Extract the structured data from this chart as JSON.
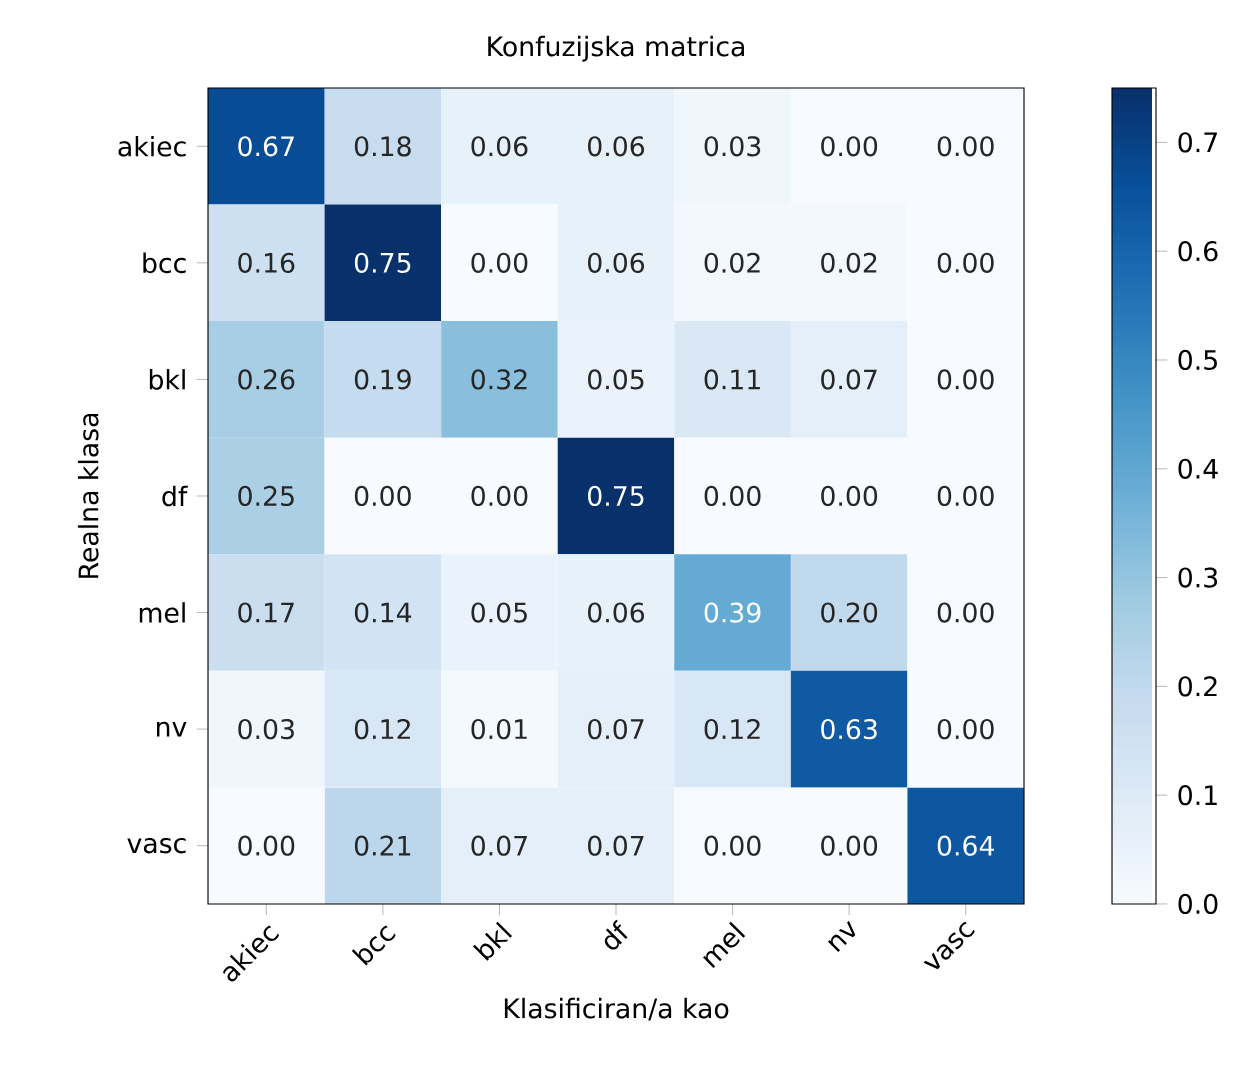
{
  "chart_data": {
    "type": "heatmap",
    "title": "Konfuzijska matrica",
    "xlabel": "Klasificiran/a kao",
    "ylabel": "Realna klasa",
    "categories": [
      "akiec",
      "bcc",
      "bkl",
      "df",
      "mel",
      "nv",
      "vasc"
    ],
    "y_categories": [
      "akiec",
      "bcc",
      "bkl",
      "df",
      "mel",
      "nv",
      "vasc"
    ],
    "cells": [
      [
        0.67,
        0.18,
        0.06,
        0.06,
        0.03,
        0.0,
        0.0
      ],
      [
        0.16,
        0.75,
        0.0,
        0.06,
        0.02,
        0.02,
        0.0
      ],
      [
        0.26,
        0.19,
        0.32,
        0.05,
        0.11,
        0.07,
        0.0
      ],
      [
        0.25,
        0.0,
        0.0,
        0.75,
        0.0,
        0.0,
        0.0
      ],
      [
        0.17,
        0.14,
        0.05,
        0.06,
        0.39,
        0.2,
        0.0
      ],
      [
        0.03,
        0.12,
        0.01,
        0.07,
        0.12,
        0.63,
        0.0
      ],
      [
        0.0,
        0.21,
        0.07,
        0.07,
        0.0,
        0.0,
        0.64
      ]
    ],
    "cell_labels": [
      [
        "0.67",
        "0.18",
        "0.06",
        "0.06",
        "0.03",
        "0.00",
        "0.00"
      ],
      [
        "0.16",
        "0.75",
        "0.00",
        "0.06",
        "0.02",
        "0.02",
        "0.00"
      ],
      [
        "0.26",
        "0.19",
        "0.32",
        "0.05",
        "0.11",
        "0.07",
        "0.00"
      ],
      [
        "0.25",
        "0.00",
        "0.00",
        "0.75",
        "0.00",
        "0.00",
        "0.00"
      ],
      [
        "0.17",
        "0.14",
        "0.05",
        "0.06",
        "0.39",
        "0.20",
        "0.00"
      ],
      [
        "0.03",
        "0.12",
        "0.01",
        "0.07",
        "0.12",
        "0.63",
        "0.00"
      ],
      [
        "0.00",
        "0.21",
        "0.07",
        "0.07",
        "0.00",
        "0.00",
        "0.64"
      ]
    ],
    "clim": [
      0,
      0.75
    ],
    "cticks": [
      {
        "value": 0,
        "label": "0.0"
      },
      0.1,
      0.2,
      0.3,
      0.4,
      0.5,
      0.6,
      0.7
    ]
  }
}
